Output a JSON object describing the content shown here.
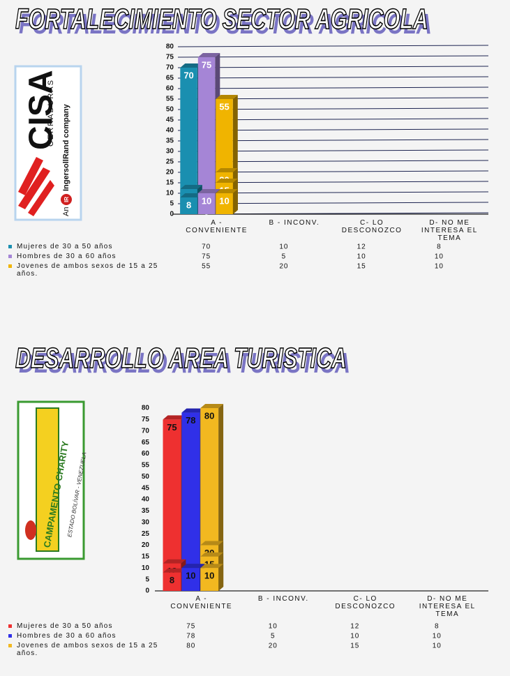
{
  "chart_data": [
    {
      "type": "bar",
      "title": "FORTALECIMIENTO SECTOR AGRICOLA",
      "categories": [
        "A - CONVENIENTE",
        "B - INCONV.",
        "C- LO DESCONOZCO",
        "D- NO ME INTERESA EL TEMA"
      ],
      "series": [
        {
          "name": "Mujeres de 30 a 50 años",
          "color": "#1a8fb0",
          "values": [
            70,
            10,
            12,
            8
          ]
        },
        {
          "name": "Hombres de 30 a 60 años",
          "color": "#a585d6",
          "values": [
            75,
            5,
            10,
            10
          ]
        },
        {
          "name": "Jovenes de ambos sexos de 15 a 25 años.",
          "color": "#f0b400",
          "values": [
            55,
            20,
            15,
            10
          ]
        }
      ],
      "ylim": [
        0,
        80
      ],
      "yticks": [
        0,
        5,
        10,
        15,
        20,
        25,
        30,
        35,
        40,
        45,
        50,
        55,
        60,
        65,
        70,
        75,
        80
      ],
      "grid": true
    },
    {
      "type": "bar",
      "title": "DESARROLLO AREA TURISTICA",
      "categories": [
        "A - CONVENIENTE",
        "B - INCONV.",
        "C- LO DESCONOZCO",
        "D- NO ME INTERESA EL TEMA"
      ],
      "series": [
        {
          "name": "Mujeres de 30 a 50 años",
          "color": "#ee3030",
          "values": [
            75,
            10,
            12,
            8
          ]
        },
        {
          "name": "Hombres de 30 a 60 años",
          "color": "#3030e8",
          "values": [
            78,
            5,
            10,
            10
          ]
        },
        {
          "name": "Jovenes de ambos sexos de 15 a 25 años.",
          "color": "#f2b820",
          "values": [
            80,
            20,
            15,
            10
          ]
        }
      ],
      "ylim": [
        0,
        80
      ],
      "yticks": [
        0,
        5,
        10,
        15,
        20,
        25,
        30,
        35,
        40,
        45,
        50,
        55,
        60,
        65,
        70,
        75,
        80
      ],
      "grid": false
    }
  ],
  "logos": [
    {
      "name": "CISA",
      "tagline": "CERRADURAS",
      "prefix": "An",
      "badge": "IR",
      "company": "IngersollRand company"
    },
    {
      "name": "CAMPAMENTO CHARITY",
      "tagline": "ESTADO BOLÍVAR - VENEZUELA"
    }
  ]
}
